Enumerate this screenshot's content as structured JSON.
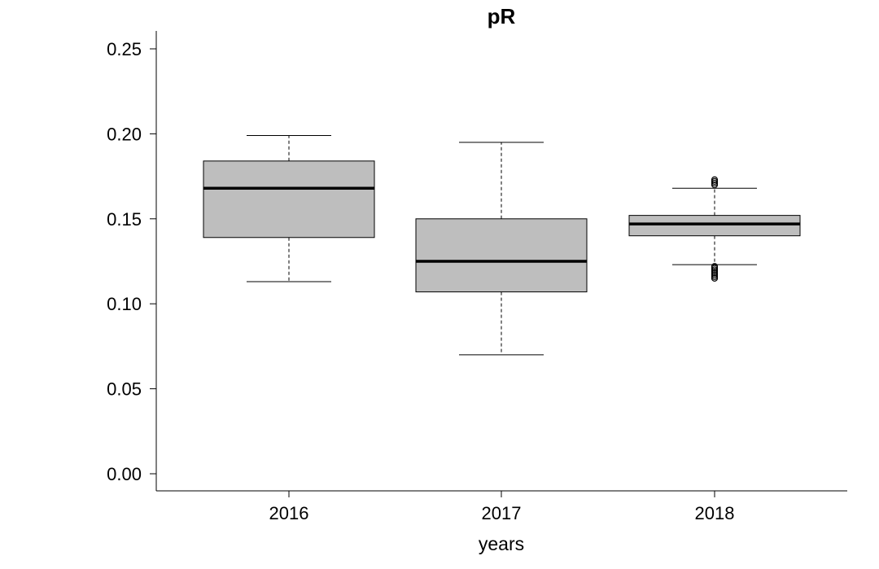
{
  "chart_data": {
    "type": "boxplot",
    "title": "pR",
    "xlabel": "years",
    "ylabel": "",
    "ylim": [
      -0.01,
      0.26
    ],
    "yticks": [
      "0.00",
      "0.05",
      "0.10",
      "0.15",
      "0.20",
      "0.25"
    ],
    "categories": [
      "2016",
      "2017",
      "2018"
    ],
    "box_color": "#bebebe",
    "grid": false,
    "legend": "none",
    "boxes": [
      {
        "category": "2016",
        "whisker_low": 0.113,
        "q1": 0.139,
        "median": 0.168,
        "q3": 0.184,
        "whisker_high": 0.199,
        "outliers": []
      },
      {
        "category": "2017",
        "whisker_low": 0.07,
        "q1": 0.107,
        "median": 0.125,
        "q3": 0.15,
        "whisker_high": 0.195,
        "outliers": []
      },
      {
        "category": "2018",
        "whisker_low": 0.123,
        "q1": 0.14,
        "median": 0.147,
        "q3": 0.152,
        "whisker_high": 0.168,
        "outliers": [
          0.115,
          0.116,
          0.117,
          0.118,
          0.119,
          0.12,
          0.121,
          0.122,
          0.17,
          0.171,
          0.172,
          0.173
        ]
      }
    ]
  }
}
